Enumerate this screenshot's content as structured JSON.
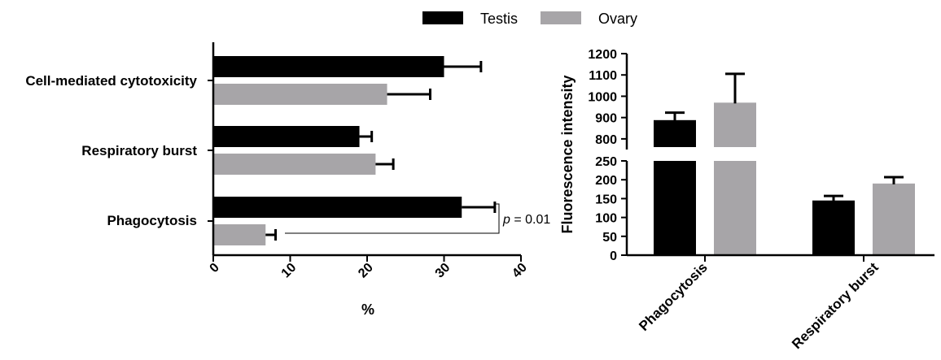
{
  "legend": {
    "position": "top-center",
    "entries": [
      {
        "name": "Testis",
        "color": "#000000"
      },
      {
        "name": "Ovary",
        "color": "#a7a5a8"
      }
    ]
  },
  "colors": {
    "testis": "#000000",
    "ovary": "#a7a5a8"
  },
  "chart_data": [
    {
      "type": "bar",
      "orientation": "horizontal",
      "categories": [
        "Cell-mediated cytotoxicity",
        "Respiratory burst",
        "Phagocytosis"
      ],
      "series": [
        {
          "name": "Testis",
          "values": [
            30,
            19,
            32.3
          ],
          "errors": [
            4.8,
            1.6,
            4.3
          ]
        },
        {
          "name": "Ovary",
          "values": [
            22.6,
            21.1,
            6.8
          ],
          "errors": [
            5.6,
            2.3,
            1.3
          ]
        }
      ],
      "xlabel": "%",
      "ylabel": "",
      "xlim": [
        0,
        40
      ],
      "xticks": [
        "0",
        "10",
        "20",
        "30",
        "40"
      ],
      "annotations": [
        {
          "text_prefix": "p",
          "text_value": " = 0.01",
          "category": "Phagocytosis"
        }
      ],
      "grid": false
    },
    {
      "type": "bar",
      "orientation": "vertical",
      "categories": [
        "Phagocytosis",
        "Respiratory burst"
      ],
      "series": [
        {
          "name": "Testis",
          "values": [
            888,
            145
          ],
          "errors": [
            35,
            12
          ]
        },
        {
          "name": "Ovary",
          "values": [
            970,
            190
          ],
          "errors": [
            135,
            17
          ]
        }
      ],
      "xlabel": "",
      "ylabel": "Fluorescence intensity",
      "ylim": [
        0,
        1200
      ],
      "axis_break": [
        250,
        750
      ],
      "yticks_lower": [
        "0",
        "50",
        "100",
        "150",
        "200",
        "250"
      ],
      "yticks_upper": [
        "800",
        "900",
        "1000",
        "1100",
        "1200"
      ],
      "grid": false
    }
  ]
}
